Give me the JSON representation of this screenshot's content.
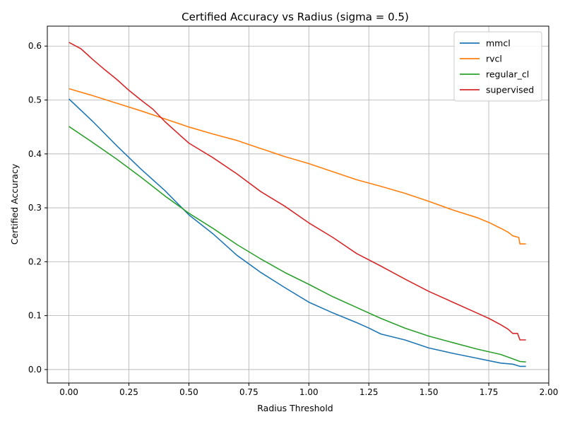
{
  "chart_data": {
    "type": "line",
    "title": "Certified Accuracy vs Radius (sigma = 0.5)",
    "xlabel": "Radius Threshold",
    "ylabel": "Certified Accuracy",
    "xlim": [
      -0.09,
      2.0
    ],
    "ylim": [
      -0.025,
      0.637
    ],
    "xticks": [
      0.0,
      0.25,
      0.5,
      0.75,
      1.0,
      1.25,
      1.5,
      1.75,
      2.0
    ],
    "xtick_labels": [
      "0.00",
      "0.25",
      "0.50",
      "0.75",
      "1.00",
      "1.25",
      "1.50",
      "1.75",
      "2.00"
    ],
    "yticks": [
      0.0,
      0.1,
      0.2,
      0.3,
      0.4,
      0.5,
      0.6
    ],
    "ytick_labels": [
      "0.0",
      "0.1",
      "0.2",
      "0.3",
      "0.4",
      "0.5",
      "0.6"
    ],
    "grid": true,
    "legend_position": "top-right",
    "series": [
      {
        "name": "mmcl",
        "color": "#1f77b4",
        "points": [
          [
            0.0,
            0.502
          ],
          [
            0.1,
            0.46
          ],
          [
            0.2,
            0.415
          ],
          [
            0.3,
            0.372
          ],
          [
            0.4,
            0.332
          ],
          [
            0.5,
            0.287
          ],
          [
            0.6,
            0.252
          ],
          [
            0.7,
            0.212
          ],
          [
            0.8,
            0.18
          ],
          [
            0.9,
            0.152
          ],
          [
            1.0,
            0.125
          ],
          [
            1.1,
            0.105
          ],
          [
            1.2,
            0.087
          ],
          [
            1.25,
            0.077
          ],
          [
            1.3,
            0.066
          ],
          [
            1.4,
            0.055
          ],
          [
            1.5,
            0.04
          ],
          [
            1.6,
            0.03
          ],
          [
            1.7,
            0.021
          ],
          [
            1.8,
            0.012
          ],
          [
            1.85,
            0.01
          ],
          [
            1.88,
            0.006
          ],
          [
            1.905,
            0.006
          ]
        ]
      },
      {
        "name": "rvcl",
        "color": "#ff7f0e",
        "points": [
          [
            0.0,
            0.521
          ],
          [
            0.1,
            0.508
          ],
          [
            0.2,
            0.494
          ],
          [
            0.3,
            0.48
          ],
          [
            0.4,
            0.465
          ],
          [
            0.5,
            0.45
          ],
          [
            0.6,
            0.437
          ],
          [
            0.7,
            0.425
          ],
          [
            0.8,
            0.41
          ],
          [
            0.9,
            0.395
          ],
          [
            1.0,
            0.382
          ],
          [
            1.1,
            0.367
          ],
          [
            1.2,
            0.352
          ],
          [
            1.3,
            0.34
          ],
          [
            1.4,
            0.327
          ],
          [
            1.5,
            0.312
          ],
          [
            1.6,
            0.296
          ],
          [
            1.7,
            0.282
          ],
          [
            1.75,
            0.273
          ],
          [
            1.8,
            0.262
          ],
          [
            1.83,
            0.255
          ],
          [
            1.85,
            0.248
          ],
          [
            1.875,
            0.245
          ],
          [
            1.88,
            0.233
          ],
          [
            1.905,
            0.233
          ]
        ]
      },
      {
        "name": "regular_cl",
        "color": "#2ca02c",
        "points": [
          [
            0.0,
            0.451
          ],
          [
            0.1,
            0.421
          ],
          [
            0.2,
            0.39
          ],
          [
            0.3,
            0.357
          ],
          [
            0.4,
            0.322
          ],
          [
            0.5,
            0.29
          ],
          [
            0.6,
            0.262
          ],
          [
            0.7,
            0.232
          ],
          [
            0.8,
            0.205
          ],
          [
            0.9,
            0.18
          ],
          [
            1.0,
            0.158
          ],
          [
            1.1,
            0.135
          ],
          [
            1.2,
            0.115
          ],
          [
            1.3,
            0.095
          ],
          [
            1.4,
            0.077
          ],
          [
            1.5,
            0.062
          ],
          [
            1.6,
            0.05
          ],
          [
            1.7,
            0.038
          ],
          [
            1.8,
            0.028
          ],
          [
            1.85,
            0.02
          ],
          [
            1.88,
            0.015
          ],
          [
            1.905,
            0.014
          ]
        ]
      },
      {
        "name": "supervised",
        "color": "#d62728",
        "points": [
          [
            0.0,
            0.607
          ],
          [
            0.05,
            0.595
          ],
          [
            0.1,
            0.575
          ],
          [
            0.15,
            0.556
          ],
          [
            0.2,
            0.538
          ],
          [
            0.25,
            0.518
          ],
          [
            0.3,
            0.5
          ],
          [
            0.35,
            0.483
          ],
          [
            0.4,
            0.46
          ],
          [
            0.45,
            0.44
          ],
          [
            0.5,
            0.42
          ],
          [
            0.6,
            0.393
          ],
          [
            0.7,
            0.363
          ],
          [
            0.8,
            0.33
          ],
          [
            0.9,
            0.303
          ],
          [
            1.0,
            0.272
          ],
          [
            1.1,
            0.245
          ],
          [
            1.2,
            0.215
          ],
          [
            1.3,
            0.192
          ],
          [
            1.4,
            0.168
          ],
          [
            1.5,
            0.145
          ],
          [
            1.6,
            0.125
          ],
          [
            1.7,
            0.105
          ],
          [
            1.75,
            0.095
          ],
          [
            1.8,
            0.083
          ],
          [
            1.83,
            0.075
          ],
          [
            1.85,
            0.067
          ],
          [
            1.87,
            0.067
          ],
          [
            1.88,
            0.055
          ],
          [
            1.905,
            0.055
          ]
        ]
      }
    ]
  }
}
